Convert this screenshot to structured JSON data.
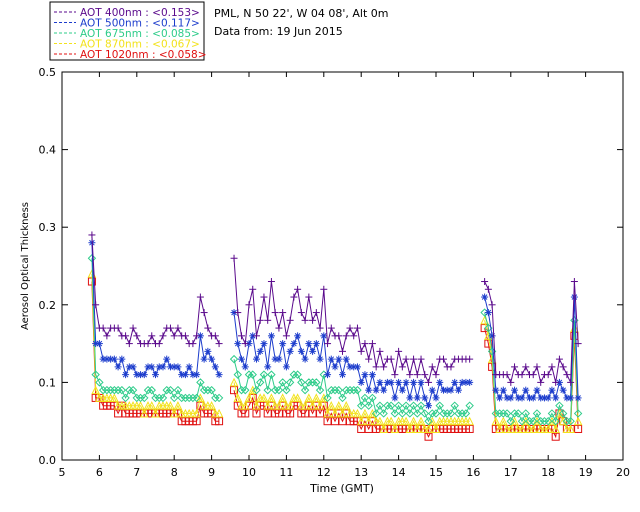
{
  "chart_data": {
    "type": "line",
    "info_lines": [
      "PML, N 50 22', W 04 08', Alt 0m",
      "Data from: 19 Jun 2015"
    ],
    "xlabel": "Time (GMT)",
    "ylabel": "Aerosol Optical Thickness",
    "xlim": [
      5,
      20
    ],
    "ylim": [
      0,
      0.5
    ],
    "xticks": [
      5,
      6,
      7,
      8,
      9,
      10,
      11,
      12,
      13,
      14,
      15,
      16,
      17,
      18,
      19,
      20
    ],
    "yticks": [
      0.0,
      0.1,
      0.2,
      0.3,
      0.4,
      0.5
    ],
    "ytick_labels": [
      "0.0",
      "0.1",
      "0.2",
      "0.3",
      "0.4",
      "0.5"
    ],
    "grid": false,
    "legend_position": "top-left outside plot",
    "x": [
      5.8,
      5.9,
      6.0,
      6.1,
      6.2,
      6.3,
      6.4,
      6.5,
      6.6,
      6.7,
      6.8,
      6.9,
      7.0,
      7.1,
      7.2,
      7.3,
      7.4,
      7.5,
      7.6,
      7.7,
      7.8,
      7.9,
      8.0,
      8.1,
      8.2,
      8.3,
      8.4,
      8.5,
      8.6,
      8.7,
      8.8,
      8.9,
      9.0,
      9.1,
      9.2,
      9.6,
      9.7,
      9.8,
      9.9,
      10.0,
      10.1,
      10.2,
      10.3,
      10.4,
      10.5,
      10.6,
      10.7,
      10.8,
      10.9,
      11.0,
      11.1,
      11.2,
      11.3,
      11.4,
      11.5,
      11.6,
      11.7,
      11.8,
      11.9,
      12.0,
      12.1,
      12.2,
      12.3,
      12.4,
      12.5,
      12.6,
      12.7,
      12.8,
      12.9,
      13.0,
      13.1,
      13.2,
      13.3,
      13.4,
      13.5,
      13.6,
      13.7,
      13.8,
      13.9,
      14.0,
      14.1,
      14.2,
      14.3,
      14.4,
      14.5,
      14.6,
      14.7,
      14.8,
      14.9,
      15.0,
      15.1,
      15.2,
      15.3,
      15.4,
      15.5,
      15.6,
      15.7,
      15.8,
      15.9,
      16.3,
      16.4,
      16.5,
      16.6,
      16.7,
      16.8,
      16.9,
      17.0,
      17.1,
      17.2,
      17.3,
      17.4,
      17.5,
      17.6,
      17.7,
      17.8,
      17.9,
      18.0,
      18.1,
      18.2,
      18.3,
      18.4,
      18.5,
      18.6,
      18.7,
      18.8
    ],
    "series": [
      {
        "name": "AOT  400nm : <0.153>",
        "color": "#5a0a8c",
        "marker": "plus",
        "values": [
          0.29,
          0.2,
          0.17,
          0.17,
          0.16,
          0.17,
          0.17,
          0.17,
          0.16,
          0.16,
          0.15,
          0.17,
          0.16,
          0.15,
          0.15,
          0.15,
          0.16,
          0.15,
          0.15,
          0.16,
          0.17,
          0.17,
          0.16,
          0.17,
          0.16,
          0.16,
          0.15,
          0.15,
          0.16,
          0.21,
          0.19,
          0.17,
          0.16,
          0.16,
          0.15,
          0.26,
          0.19,
          0.16,
          0.15,
          0.2,
          0.22,
          0.16,
          0.18,
          0.21,
          0.18,
          0.23,
          0.19,
          0.17,
          0.19,
          0.16,
          0.18,
          0.21,
          0.22,
          0.19,
          0.18,
          0.21,
          0.18,
          0.19,
          0.17,
          0.22,
          0.15,
          0.17,
          0.16,
          0.16,
          0.14,
          0.16,
          0.17,
          0.16,
          0.17,
          0.14,
          0.15,
          0.13,
          0.15,
          0.12,
          0.14,
          0.12,
          0.13,
          0.13,
          0.11,
          0.14,
          0.12,
          0.13,
          0.11,
          0.13,
          0.11,
          0.13,
          0.11,
          0.1,
          0.12,
          0.11,
          0.13,
          0.13,
          0.12,
          0.12,
          0.13,
          0.13,
          0.13,
          0.13,
          0.13,
          0.23,
          0.22,
          0.2,
          0.11,
          0.11,
          0.11,
          0.11,
          0.1,
          0.12,
          0.11,
          0.11,
          0.12,
          0.11,
          0.11,
          0.12,
          0.1,
          0.11,
          0.11,
          0.12,
          0.1,
          0.13,
          0.12,
          0.11,
          0.1,
          0.23,
          0.15
        ]
      },
      {
        "name": "AOT  500nm : <0.117>",
        "color": "#1c3ccc",
        "marker": "asterisk",
        "values": [
          0.28,
          0.15,
          0.15,
          0.13,
          0.13,
          0.13,
          0.13,
          0.12,
          0.13,
          0.11,
          0.12,
          0.12,
          0.11,
          0.11,
          0.11,
          0.12,
          0.12,
          0.11,
          0.12,
          0.12,
          0.13,
          0.12,
          0.12,
          0.12,
          0.11,
          0.11,
          0.12,
          0.11,
          0.11,
          0.16,
          0.13,
          0.14,
          0.13,
          0.12,
          0.11,
          0.19,
          0.15,
          0.13,
          0.12,
          0.15,
          0.16,
          0.13,
          0.14,
          0.15,
          0.12,
          0.16,
          0.13,
          0.13,
          0.15,
          0.12,
          0.14,
          0.15,
          0.16,
          0.14,
          0.13,
          0.15,
          0.14,
          0.15,
          0.13,
          0.16,
          0.11,
          0.13,
          0.12,
          0.13,
          0.11,
          0.13,
          0.12,
          0.12,
          0.12,
          0.1,
          0.11,
          0.09,
          0.11,
          0.09,
          0.1,
          0.09,
          0.1,
          0.1,
          0.08,
          0.1,
          0.09,
          0.1,
          0.08,
          0.1,
          0.08,
          0.1,
          0.08,
          0.07,
          0.09,
          0.08,
          0.1,
          0.09,
          0.09,
          0.09,
          0.1,
          0.09,
          0.1,
          0.1,
          0.1,
          0.21,
          0.19,
          0.16,
          0.09,
          0.08,
          0.09,
          0.08,
          0.08,
          0.09,
          0.08,
          0.08,
          0.09,
          0.08,
          0.08,
          0.09,
          0.08,
          0.08,
          0.08,
          0.09,
          0.08,
          0.1,
          0.09,
          0.08,
          0.08,
          0.21,
          0.08
        ]
      },
      {
        "name": "AOT  675nm : <0.085>",
        "color": "#2ecc8a",
        "marker": "diamond",
        "values": [
          0.26,
          0.11,
          0.1,
          0.09,
          0.09,
          0.09,
          0.09,
          0.09,
          0.09,
          0.08,
          0.09,
          0.09,
          0.08,
          0.08,
          0.08,
          0.09,
          0.09,
          0.08,
          0.08,
          0.08,
          0.09,
          0.09,
          0.08,
          0.09,
          0.08,
          0.08,
          0.08,
          0.08,
          0.08,
          0.1,
          0.09,
          0.09,
          0.09,
          0.08,
          0.08,
          0.13,
          0.11,
          0.09,
          0.09,
          0.11,
          0.11,
          0.09,
          0.1,
          0.11,
          0.09,
          0.11,
          0.09,
          0.09,
          0.1,
          0.09,
          0.1,
          0.11,
          0.11,
          0.1,
          0.09,
          0.1,
          0.1,
          0.1,
          0.09,
          0.11,
          0.08,
          0.09,
          0.09,
          0.09,
          0.08,
          0.09,
          0.09,
          0.09,
          0.09,
          0.07,
          0.08,
          0.07,
          0.08,
          0.06,
          0.07,
          0.06,
          0.07,
          0.07,
          0.06,
          0.07,
          0.06,
          0.07,
          0.06,
          0.07,
          0.06,
          0.07,
          0.06,
          0.05,
          0.06,
          0.06,
          0.07,
          0.06,
          0.06,
          0.06,
          0.07,
          0.06,
          0.06,
          0.06,
          0.07,
          0.19,
          0.17,
          0.14,
          0.06,
          0.06,
          0.06,
          0.06,
          0.05,
          0.06,
          0.06,
          0.05,
          0.06,
          0.05,
          0.05,
          0.06,
          0.05,
          0.05,
          0.05,
          0.06,
          0.05,
          0.07,
          0.06,
          0.05,
          0.05,
          0.18,
          0.06
        ]
      },
      {
        "name": "AOT  870nm : <0.067>",
        "color": "#f2e21c",
        "marker": "triangle",
        "values": [
          0.24,
          0.09,
          0.08,
          0.08,
          0.08,
          0.08,
          0.08,
          0.07,
          0.07,
          0.07,
          0.07,
          0.07,
          0.07,
          0.07,
          0.06,
          0.07,
          0.07,
          0.06,
          0.07,
          0.07,
          0.07,
          0.07,
          0.06,
          0.07,
          0.06,
          0.06,
          0.06,
          0.06,
          0.06,
          0.08,
          0.07,
          0.07,
          0.07,
          0.06,
          0.06,
          0.1,
          0.08,
          0.07,
          0.07,
          0.08,
          0.09,
          0.07,
          0.08,
          0.08,
          0.07,
          0.08,
          0.07,
          0.07,
          0.08,
          0.07,
          0.07,
          0.08,
          0.08,
          0.07,
          0.07,
          0.08,
          0.07,
          0.08,
          0.07,
          0.08,
          0.06,
          0.07,
          0.06,
          0.07,
          0.06,
          0.07,
          0.06,
          0.06,
          0.06,
          0.05,
          0.06,
          0.05,
          0.06,
          0.05,
          0.05,
          0.04,
          0.05,
          0.05,
          0.04,
          0.05,
          0.05,
          0.05,
          0.04,
          0.05,
          0.04,
          0.05,
          0.04,
          0.04,
          0.05,
          0.04,
          0.05,
          0.05,
          0.05,
          0.05,
          0.05,
          0.05,
          0.05,
          0.05,
          0.05,
          0.18,
          0.16,
          0.13,
          0.05,
          0.04,
          0.05,
          0.04,
          0.04,
          0.05,
          0.04,
          0.04,
          0.05,
          0.04,
          0.04,
          0.05,
          0.04,
          0.04,
          0.04,
          0.05,
          0.04,
          0.06,
          0.05,
          0.04,
          0.04,
          0.17,
          0.05
        ]
      },
      {
        "name": "AOT 1020nm : <0.058>",
        "color": "#e01010",
        "marker": "square",
        "values": [
          0.23,
          0.08,
          0.08,
          0.07,
          0.07,
          0.07,
          0.07,
          0.06,
          0.07,
          0.06,
          0.06,
          0.06,
          0.06,
          0.06,
          0.06,
          0.06,
          0.06,
          0.06,
          0.06,
          0.06,
          0.06,
          0.06,
          0.06,
          0.06,
          0.05,
          0.05,
          0.05,
          0.05,
          0.05,
          0.07,
          0.06,
          0.06,
          0.06,
          0.05,
          0.05,
          0.09,
          0.07,
          0.06,
          0.06,
          0.07,
          0.08,
          0.06,
          0.07,
          0.07,
          0.06,
          0.07,
          0.06,
          0.06,
          0.07,
          0.06,
          0.06,
          0.07,
          0.07,
          0.06,
          0.06,
          0.07,
          0.06,
          0.07,
          0.06,
          0.07,
          0.05,
          0.06,
          0.05,
          0.06,
          0.05,
          0.06,
          0.05,
          0.05,
          0.05,
          0.04,
          0.05,
          0.04,
          0.05,
          0.04,
          0.04,
          0.04,
          0.04,
          0.04,
          0.04,
          0.04,
          0.04,
          0.04,
          0.04,
          0.04,
          0.04,
          0.04,
          0.04,
          0.03,
          0.04,
          0.04,
          0.04,
          0.04,
          0.04,
          0.04,
          0.04,
          0.04,
          0.04,
          0.04,
          0.04,
          0.17,
          0.15,
          0.12,
          0.04,
          0.04,
          0.04,
          0.04,
          0.04,
          0.04,
          0.04,
          0.04,
          0.04,
          0.04,
          0.04,
          0.04,
          0.04,
          0.04,
          0.04,
          0.04,
          0.03,
          0.06,
          0.05,
          0.04,
          0.04,
          0.16,
          0.04
        ]
      }
    ]
  }
}
